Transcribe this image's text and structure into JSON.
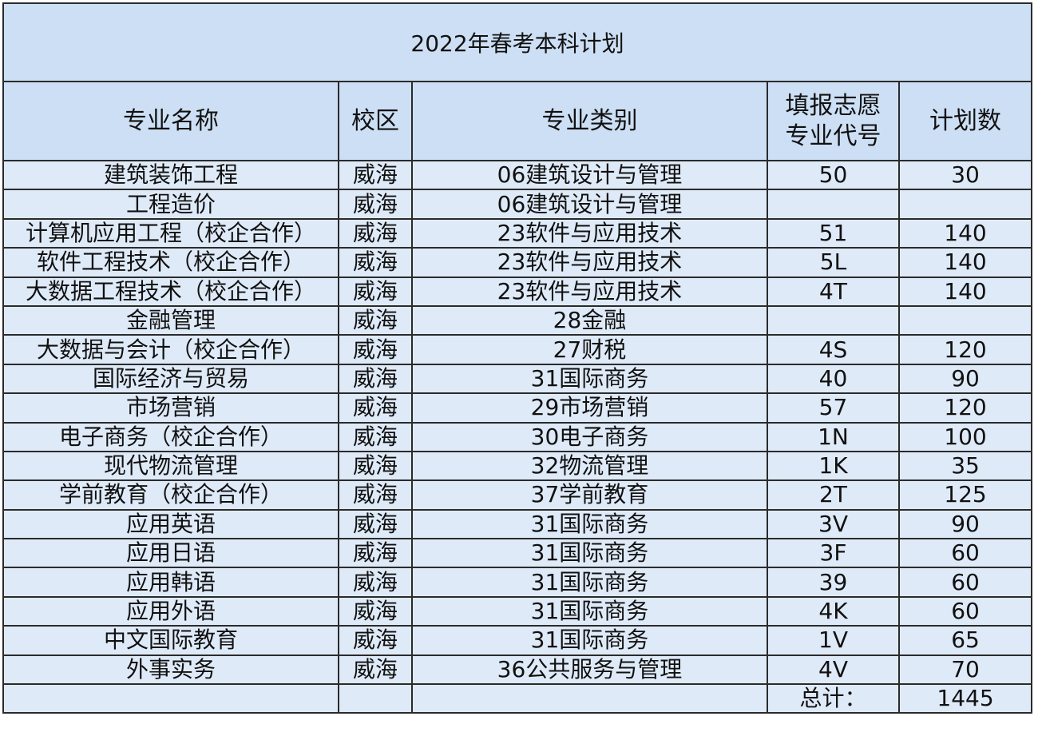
{
  "title": "2022年春考本科计划",
  "header": [
    "专业名称",
    "校区",
    "专业类别",
    "填报志愿专业代号",
    "计划数"
  ],
  "rows": [
    {
      "name": "建筑装饰工程",
      "campus": "威海",
      "category": "06建筑设计与管理",
      "code": "50",
      "count": 30
    },
    {
      "name": "工程造价",
      "campus": "威海",
      "category": "06建筑设计与管理"
    },
    {
      "name": "计算机应用工程（校企合作）",
      "campus": "威海",
      "category": "23软件与应用技术",
      "code": "51",
      "count": 140
    },
    {
      "name": "软件工程技术（校企合作）",
      "campus": "威海",
      "category": "23软件与应用技术",
      "code": "5L",
      "count": 140
    },
    {
      "name": "大数据工程技术（校企合作）",
      "campus": "威海",
      "category": "23软件与应用技术",
      "code": "4T",
      "count": 140
    },
    {
      "name": "金融管理",
      "campus": "威海",
      "category": "28金融"
    },
    {
      "name": "大数据与会计（校企合作）",
      "campus": "威海",
      "category": "27财税",
      "code": "4S",
      "count": 120
    },
    {
      "name": "国际经济与贸易",
      "campus": "威海",
      "category": "31国际商务",
      "code": "40",
      "count": 90
    },
    {
      "name": "市场营销",
      "campus": "威海",
      "category": "29市场营销",
      "code": "57",
      "count": 120
    },
    {
      "name": "电子商务（校企合作）",
      "campus": "威海",
      "category": "30电子商务",
      "code": "1N",
      "count": 100
    },
    {
      "name": "现代物流管理",
      "campus": "威海",
      "category": "32物流管理",
      "code": "1K",
      "count": 35
    },
    {
      "name": "学前教育（校企合作）",
      "campus": "威海",
      "category": "37学前教育",
      "code": "2T",
      "count": 125
    },
    {
      "name": "应用英语",
      "campus": "威海",
      "category": "31国际商务",
      "code": "3V",
      "count": 90
    },
    {
      "name": "应用日语",
      "campus": "威海",
      "category": "31国际商务",
      "code": "3F",
      "count": 60
    },
    {
      "name": "应用韩语",
      "campus": "威海",
      "category": "31国际商务",
      "code": "39",
      "count": 60
    },
    {
      "name": "应用外语",
      "campus": "威海",
      "category": "31国际商务",
      "code": "4K",
      "count": 60
    },
    {
      "name": "中文国际教育",
      "campus": "威海",
      "category": "31国际商务",
      "code": "1V",
      "count": 65
    },
    {
      "name": "外事实务",
      "campus": "威海",
      "category": "36公共服务与管理",
      "code": "4V",
      "count": 70
    }
  ],
  "total": {
    "label": "总计：",
    "count": 1445
  }
}
